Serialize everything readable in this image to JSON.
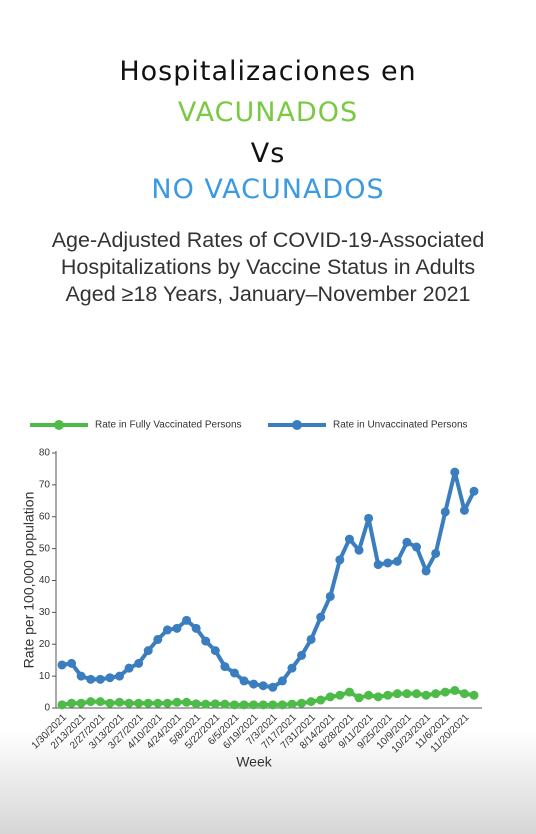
{
  "header": {
    "line1": "Hospitalizaciones en",
    "line2": "VACUNADOS",
    "line3": "Vs",
    "line4": "NO VACUNADOS"
  },
  "chart_data": {
    "type": "line",
    "title": "Age-Adjusted Rates of COVID-19-Associated Hospitalizations by Vaccine Status in Adults Aged ≥18 Years, January–November 2021",
    "x_label": "Week",
    "y_label": "Rate per 100,000 population",
    "ylim": [
      0,
      80
    ],
    "yticks": [
      0,
      10,
      20,
      30,
      40,
      50,
      60,
      70,
      80
    ],
    "grid": false,
    "categories": [
      "1/30/2021",
      null,
      "2/13/2021",
      null,
      "2/27/2021",
      null,
      "3/13/2021",
      null,
      "3/27/2021",
      null,
      "4/10/2021",
      null,
      "4/24/2021",
      null,
      "5/8/2021",
      null,
      "5/22/2021",
      null,
      "6/5/2021",
      null,
      "6/19/2021",
      null,
      "7/3/2021",
      null,
      "7/17/2021",
      null,
      "7/31/2021",
      null,
      "8/14/2021",
      null,
      "8/28/2021",
      null,
      "9/11/2021",
      null,
      "9/25/2021",
      null,
      "10/9/2021",
      null,
      "10/23/2021",
      null,
      "11/6/2021",
      null,
      "11/20/2021",
      null
    ],
    "series": [
      {
        "name": "Rate in Fully Vaccinated Persons",
        "color": "#4cbb47",
        "values": [
          1,
          1.5,
          1.5,
          2,
          2,
          1.5,
          1.8,
          1.5,
          1.5,
          1.5,
          1.5,
          1.5,
          1.8,
          1.8,
          1.3,
          1.2,
          1.3,
          1.2,
          1,
          1,
          1,
          1,
          1,
          1,
          1.2,
          1.5,
          2,
          2.5,
          3.5,
          4,
          5,
          3.2,
          4,
          3.5,
          4,
          4.5,
          4.5,
          4.5,
          4,
          4.5,
          5,
          5.5,
          4.5,
          4
        ]
      },
      {
        "name": "Rate in Unvaccinated Persons",
        "color": "#3a7ebf",
        "values": [
          13.5,
          14,
          10,
          9,
          9,
          9.5,
          10,
          12.5,
          14,
          18,
          21.5,
          24.5,
          25,
          27.5,
          25,
          21,
          18,
          13,
          11,
          8.5,
          7.5,
          7,
          6.5,
          8.5,
          12.5,
          16.5,
          21.5,
          28.5,
          35,
          46.5,
          53,
          49.5,
          59.5,
          45,
          45.5,
          46,
          52,
          50.5,
          43,
          48.5,
          61.5,
          74,
          62,
          68
        ]
      }
    ]
  }
}
